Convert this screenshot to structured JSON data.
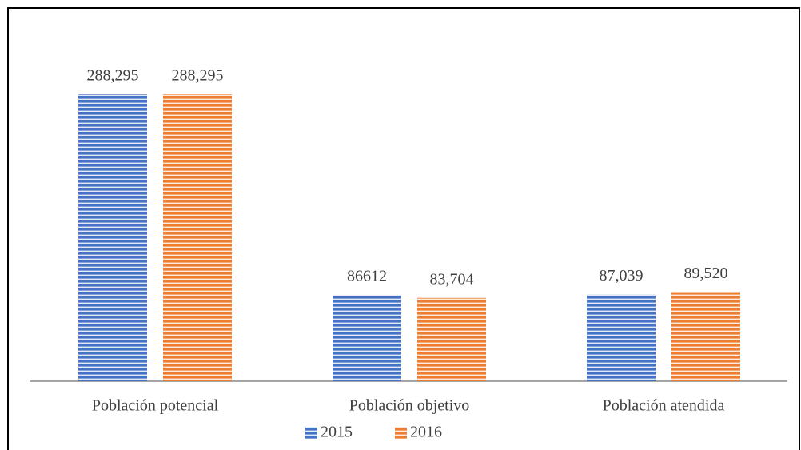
{
  "chart_data": {
    "type": "bar",
    "categories": [
      "Población potencial",
      "Población objetivo",
      "Población atendida"
    ],
    "series": [
      {
        "name": "2015",
        "color": "#4472c4",
        "values": [
          288295,
          86612,
          87039
        ],
        "value_labels": [
          "288,295",
          "86612",
          "87,039"
        ]
      },
      {
        "name": "2016",
        "color": "#ed7d31",
        "values": [
          288295,
          83704,
          89520
        ],
        "value_labels": [
          "288,295",
          "83,704",
          "89,520"
        ]
      }
    ],
    "legend": "bottom"
  }
}
